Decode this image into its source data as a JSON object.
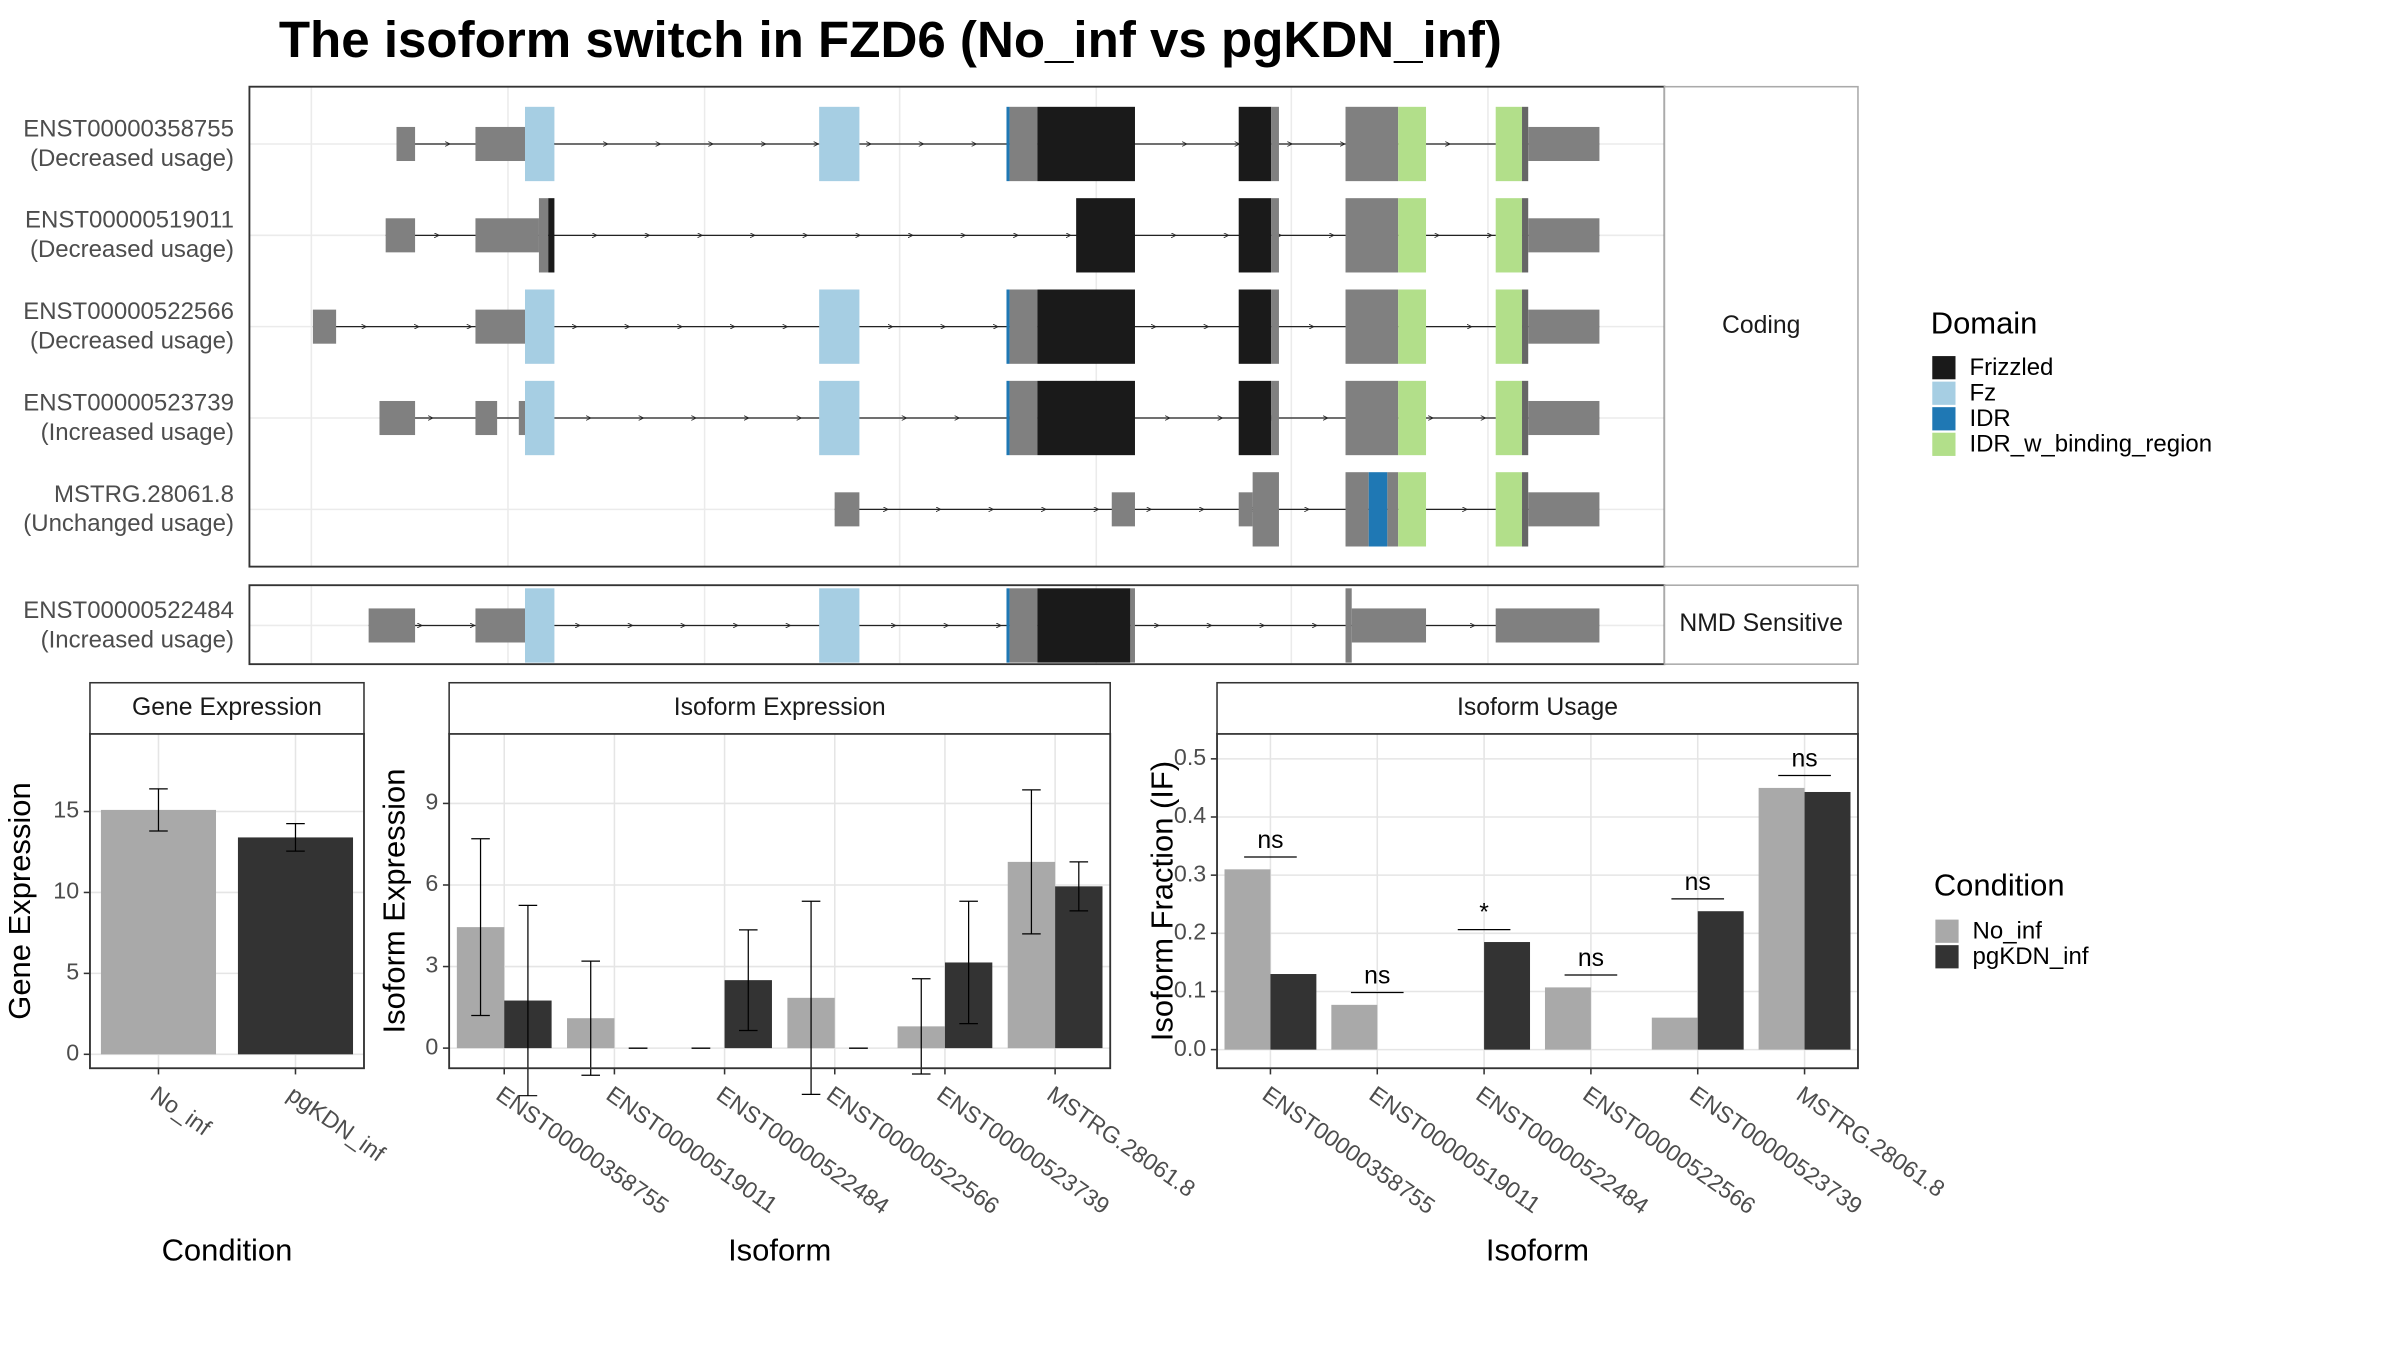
{
  "title": "The isoform switch in FZD6 (No_inf vs pgKDN_inf)",
  "isoform_structure": {
    "panels": [
      {
        "label": "Coding",
        "transcripts": [
          {
            "name": "ENST00000358755",
            "usage": "(Decreased usage)"
          },
          {
            "name": "ENST00000519011",
            "usage": "(Decreased usage)"
          },
          {
            "name": "ENST00000522566",
            "usage": "(Decreased usage)"
          },
          {
            "name": "ENST00000523739",
            "usage": "(Increased usage)"
          },
          {
            "name": "MSTRG.28061.8",
            "usage": "(Unchanged usage)"
          }
        ]
      },
      {
        "label": "NMD Sensitive",
        "transcripts": [
          {
            "name": "ENST00000522484",
            "usage": "(Increased usage)"
          }
        ]
      }
    ],
    "domain_legend": {
      "title": "Domain",
      "items": [
        {
          "name": "Frizzled",
          "color": "#1a1a1a"
        },
        {
          "name": "Fz",
          "color": "#a6cee3"
        },
        {
          "name": "IDR",
          "color": "#1f78b4"
        },
        {
          "name": "IDR_w_binding_region",
          "color": "#b2df8a"
        }
      ]
    }
  },
  "condition_legend": {
    "title": "Condition",
    "items": [
      {
        "name": "No_inf",
        "color": "#a9a9a9"
      },
      {
        "name": "pgKDN_inf",
        "color": "#333333"
      }
    ]
  },
  "chart_data": [
    {
      "type": "bar",
      "title": "Gene Expression",
      "x_label": "Condition",
      "y_label": "Gene Expression",
      "categories": [
        "No_inf",
        "pgKDN_inf"
      ],
      "values": [
        15.1,
        13.4
      ],
      "errors": [
        1.3,
        0.85
      ],
      "colors": [
        "#a9a9a9",
        "#333333"
      ],
      "ylim": [
        -0.86,
        19.8
      ],
      "yticks": [
        0,
        5,
        10,
        15
      ],
      "grid": true
    },
    {
      "type": "grouped_bar",
      "title": "Isoform Expression",
      "x_label": "Isoform",
      "y_label": "Isoform Expression",
      "categories": [
        "ENST00000358755",
        "ENST00000519011",
        "ENST00000522484",
        "ENST00000522566",
        "ENST00000523739",
        "MSTRG.28061.8"
      ],
      "series": [
        {
          "color": "#a9a9a9",
          "values": [
            4.45,
            1.1,
            0,
            1.85,
            0.8,
            6.85
          ],
          "errors": [
            3.25,
            2.1,
            0,
            3.55,
            1.75,
            2.65
          ]
        },
        {
          "color": "#333333",
          "values": [
            1.75,
            0,
            2.5,
            0,
            3.15,
            5.95
          ],
          "errors": [
            3.5,
            0,
            1.85,
            0,
            2.25,
            0.9
          ]
        }
      ],
      "ylim": [
        -0.74,
        11.56
      ],
      "yticks": [
        0,
        3,
        6,
        9
      ],
      "grid": true
    },
    {
      "type": "grouped_bar",
      "title": "Isoform Usage",
      "x_label": "Isoform",
      "y_label": "Isoform Fraction (IF)",
      "categories": [
        "ENST00000358755",
        "ENST00000519011",
        "ENST00000522484",
        "ENST00000522566",
        "ENST00000523739",
        "MSTRG.28061.8"
      ],
      "series": [
        {
          "color": "#a9a9a9",
          "values": [
            0.31,
            0.077,
            0,
            0.107,
            0.055,
            0.45
          ]
        },
        {
          "color": "#333333",
          "values": [
            0.13,
            0,
            0.185,
            0,
            0.238,
            0.443
          ]
        }
      ],
      "significance": [
        "ns",
        "ns",
        "*",
        "ns",
        "ns",
        "ns"
      ],
      "ylim": [
        -0.032,
        0.543
      ],
      "yticks": [
        {
          "value": 0,
          "label": "0.0"
        },
        0.1,
        0.2,
        0.3,
        0.4,
        0.5
      ],
      "grid": true
    }
  ]
}
